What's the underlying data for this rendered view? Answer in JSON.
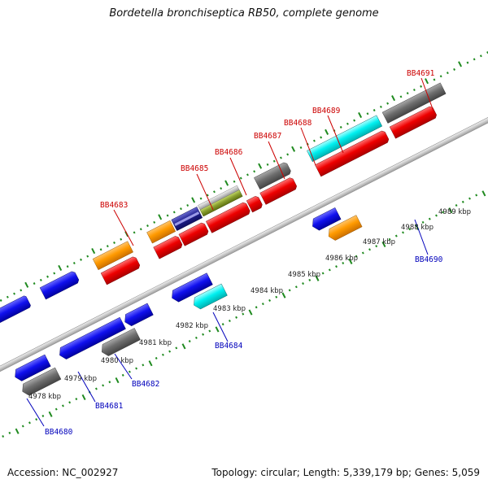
{
  "header": {
    "title": "Bordetella bronchiseptica RB50, complete genome"
  },
  "footer": {
    "accession": "Accession: NC_002927",
    "topology": "Topology: circular; Length: 5,339,179 bp; Genes: 5,059"
  },
  "colors": {
    "backbone": "#9a9a9a",
    "ticks": "#1f8a1f",
    "top_labels": "#cc0000",
    "bottom_labels": "#0000bb"
  },
  "scale_labels": [
    "4978 kbp",
    "4979 kbp",
    "4980 kbp",
    "4981 kbp",
    "4982 kbp",
    "4983 kbp",
    "4984 kbp",
    "4985 kbp",
    "4986 kbp",
    "4987 kbp",
    "4988 kbp",
    "4989 kbp"
  ],
  "gene_labels_top": [
    "BB4683",
    "BB4685",
    "BB4686",
    "BB4687",
    "BB4688",
    "BB4689",
    "BB4691"
  ],
  "gene_labels_bottom": [
    "BB4680",
    "BB4681",
    "BB4682",
    "BB4684",
    "BB4690"
  ]
}
